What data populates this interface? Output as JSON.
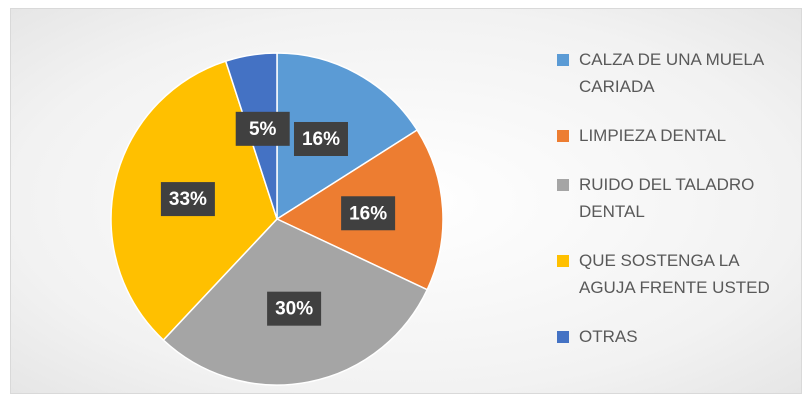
{
  "chart_data": {
    "type": "pie",
    "categories": [
      "CALZA DE UNA MUELA CARIADA",
      "LIMPIEZA DENTAL",
      "RUIDO DEL TALADRO DENTAL",
      "QUE SOSTENGA LA AGUJA FRENTE USTED",
      "OTRAS"
    ],
    "values": [
      16,
      16,
      30,
      33,
      5
    ],
    "value_labels": [
      "16%",
      "16%",
      "30%",
      "33%",
      "5%"
    ],
    "colors": [
      "#5b9bd5",
      "#ed7d31",
      "#a5a5a5",
      "#ffc000",
      "#4472c4"
    ],
    "legend": "right"
  }
}
